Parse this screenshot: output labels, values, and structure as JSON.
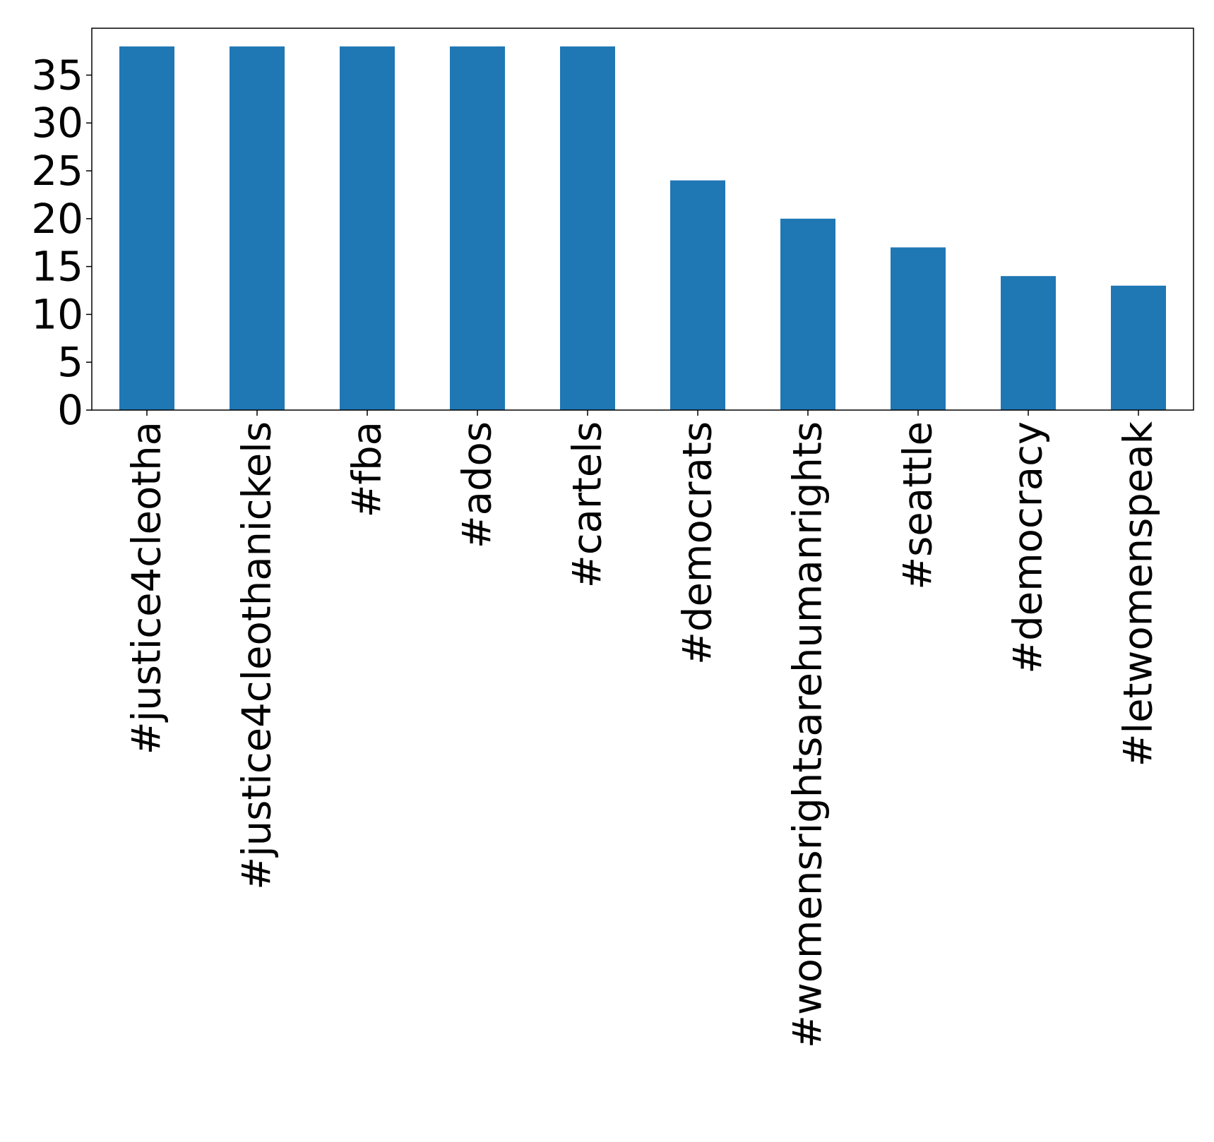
{
  "chart_data": {
    "type": "bar",
    "title": "",
    "xlabel": "",
    "ylabel": "",
    "categories": [
      "#justice4cleotha",
      "#justice4cleothanickels",
      "#fba",
      "#ados",
      "#cartels",
      "#democrats",
      "#womensrightsarehumanrights",
      "#seattle",
      "#democracy",
      "#letwomenspeak"
    ],
    "values": [
      38,
      38,
      38,
      38,
      38,
      24,
      20,
      17,
      14,
      13
    ],
    "ylim": [
      0,
      39.9
    ],
    "yticks": [
      0,
      5,
      10,
      15,
      20,
      25,
      30,
      35
    ],
    "bar_color": "#1f77b4",
    "grid": false,
    "legend": "none",
    "x_tick_rotation": "vertical"
  }
}
